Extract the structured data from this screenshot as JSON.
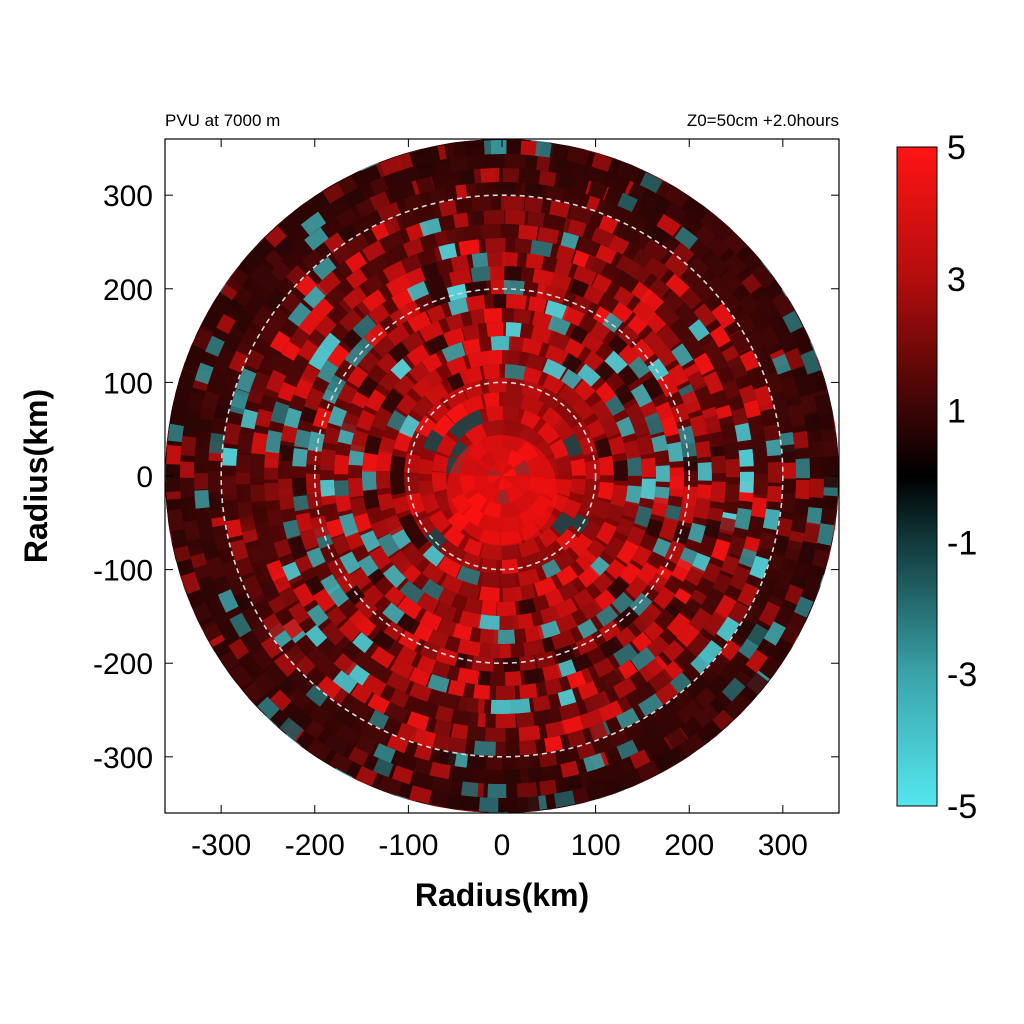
{
  "chart_data": {
    "type": "heatmap",
    "title_left": "PVU at  7000 m",
    "title_right": "Z0=50cm  +2.0hours",
    "xlabel": "Radius(km)",
    "ylabel": "Radius(km)",
    "xlim": [
      -360,
      360
    ],
    "ylim": [
      -360,
      360
    ],
    "xticks": [
      "-300",
      "-200",
      "-100",
      "0",
      "100",
      "200",
      "300"
    ],
    "yticks": [
      "300",
      "200",
      "100",
      "0",
      "-100",
      "-200",
      "-300"
    ],
    "domain_radius_km": 360,
    "reference_circles_km": [
      100,
      200,
      300
    ],
    "colorbar": {
      "range": [
        -5,
        5
      ],
      "ticks": [
        "5",
        "3",
        "1",
        "-1",
        "-3",
        "-5"
      ],
      "colors": {
        "low": "#55e6ee",
        "mid": "#000000",
        "high": "#ff1414"
      }
    }
  }
}
